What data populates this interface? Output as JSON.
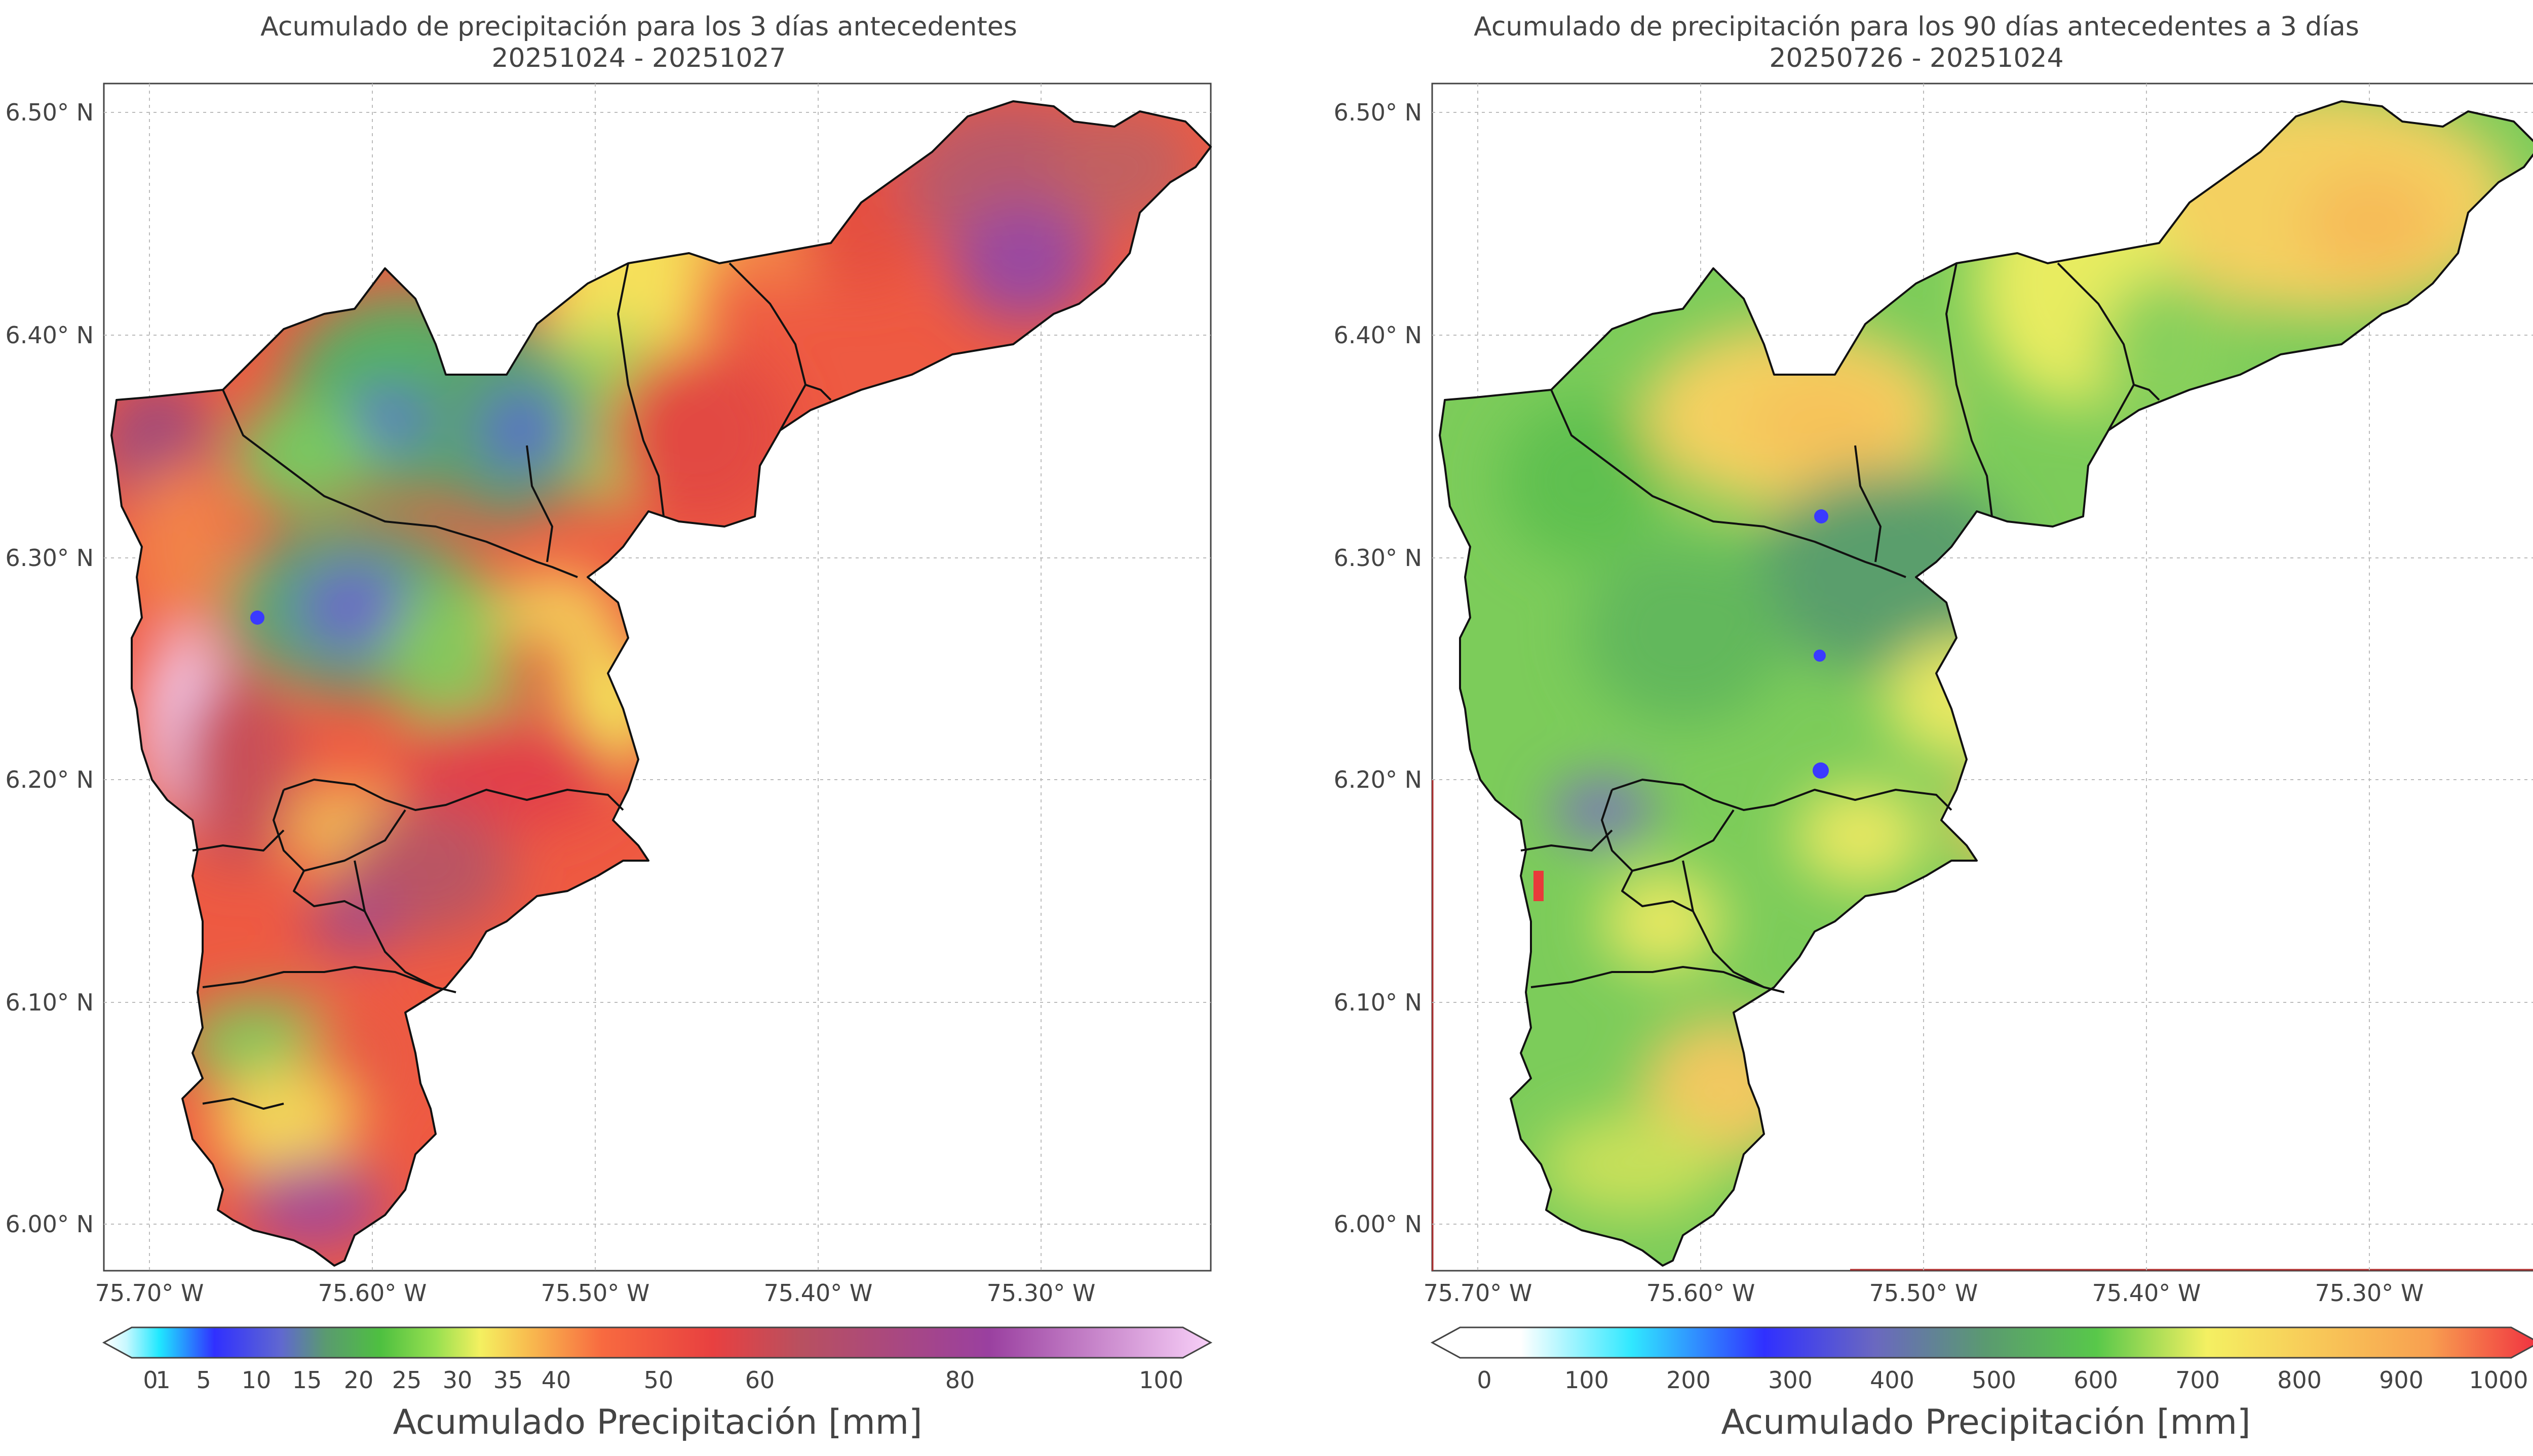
{
  "panels": [
    {
      "title": "Acumulado de precipitación para los 3 días antecedentes",
      "dates": "20251024 - 20251027",
      "y_ticks": [
        "6.50° N",
        "6.40° N",
        "6.30° N",
        "6.20° N",
        "6.10° N",
        "6.00° N"
      ],
      "x_ticks": [
        "75.70° W",
        "75.60° W",
        "75.50° W",
        "75.40° W",
        "75.30° W"
      ],
      "colorbar": {
        "label": "Acumulado Precipitación [mm]",
        "ticks": [
          "0",
          "1",
          "5",
          "10",
          "15",
          "20",
          "25",
          "30",
          "35",
          "40",
          "50",
          "60",
          "80",
          "100"
        ]
      }
    },
    {
      "title": "Acumulado de precipitación para los 90 días antecedentes a 3 días",
      "dates": "20250726 - 20251024",
      "y_ticks": [
        "6.50° N",
        "6.40° N",
        "6.30° N",
        "6.20° N",
        "6.10° N",
        "6.00° N"
      ],
      "x_ticks": [
        "75.70° W",
        "75.60° W",
        "75.50° W",
        "75.40° W",
        "75.30° W"
      ],
      "colorbar": {
        "label": "Acumulado Precipitación [mm]",
        "ticks": [
          "0",
          "100",
          "200",
          "300",
          "400",
          "500",
          "600",
          "700",
          "800",
          "900",
          "1000"
        ]
      }
    }
  ]
}
